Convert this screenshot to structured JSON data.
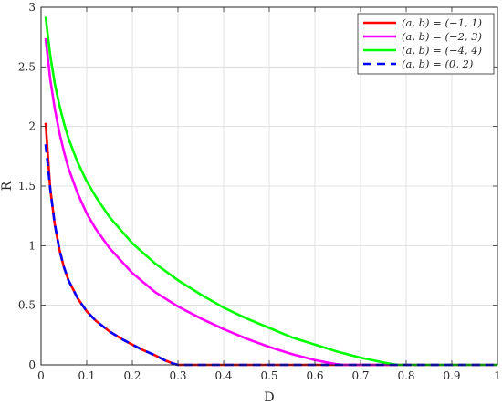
{
  "chart_data": {
    "type": "line",
    "xlabel": "D",
    "ylabel": "R",
    "xlim": [
      0,
      1
    ],
    "ylim": [
      0,
      3
    ],
    "grid": true,
    "legend_position": "top-right",
    "x_ticks": [
      "0",
      "0.1",
      "0.2",
      "0.3",
      "0.4",
      "0.5",
      "0.6",
      "0.7",
      "0.8",
      "0.9",
      "1"
    ],
    "y_ticks": [
      "0",
      "0.5",
      "1",
      "1.5",
      "2",
      "2.5",
      "3"
    ],
    "series": [
      {
        "name": "(a, b) = (−1, 1)",
        "color": "#ff0000",
        "style": "solid",
        "x": [
          0.01,
          0.02,
          0.03,
          0.04,
          0.05,
          0.06,
          0.08,
          0.1,
          0.12,
          0.15,
          0.18,
          0.2,
          0.22,
          0.25,
          0.27,
          0.29,
          0.3,
          0.4,
          0.5,
          0.6,
          0.7,
          0.8,
          0.9,
          1.0
        ],
        "y": [
          2.03,
          1.48,
          1.18,
          0.97,
          0.82,
          0.71,
          0.56,
          0.45,
          0.37,
          0.28,
          0.21,
          0.17,
          0.13,
          0.08,
          0.04,
          0.01,
          0,
          0,
          0,
          0,
          0,
          0,
          0,
          0
        ]
      },
      {
        "name": "(a, b) = (−2, 3)",
        "color": "#ff00ff",
        "style": "solid",
        "x": [
          0.01,
          0.02,
          0.03,
          0.04,
          0.05,
          0.06,
          0.08,
          0.1,
          0.12,
          0.15,
          0.2,
          0.25,
          0.3,
          0.35,
          0.4,
          0.45,
          0.5,
          0.55,
          0.6,
          0.64,
          0.66,
          0.7,
          0.8,
          0.9,
          1.0
        ],
        "y": [
          2.74,
          2.4,
          2.15,
          1.95,
          1.79,
          1.65,
          1.44,
          1.27,
          1.14,
          0.98,
          0.77,
          0.61,
          0.49,
          0.39,
          0.3,
          0.22,
          0.15,
          0.09,
          0.04,
          0.01,
          0,
          0,
          0,
          0,
          0
        ]
      },
      {
        "name": "(a, b) = (−4, 4)",
        "color": "#00ff00",
        "style": "solid",
        "x": [
          0.01,
          0.02,
          0.03,
          0.04,
          0.05,
          0.06,
          0.08,
          0.1,
          0.12,
          0.15,
          0.2,
          0.25,
          0.3,
          0.35,
          0.4,
          0.45,
          0.5,
          0.55,
          0.6,
          0.65,
          0.7,
          0.75,
          0.78,
          0.8,
          0.9,
          1.0
        ],
        "y": [
          2.92,
          2.6,
          2.36,
          2.18,
          2.03,
          1.9,
          1.7,
          1.54,
          1.41,
          1.24,
          1.02,
          0.85,
          0.71,
          0.59,
          0.48,
          0.39,
          0.31,
          0.23,
          0.17,
          0.11,
          0.06,
          0.02,
          0,
          0,
          0,
          0
        ]
      },
      {
        "name": "(a, b) = (0, 2)",
        "color": "#0000ff",
        "style": "dashed",
        "x": [
          0.01,
          0.02,
          0.03,
          0.04,
          0.05,
          0.06,
          0.08,
          0.1,
          0.12,
          0.15,
          0.18,
          0.2,
          0.22,
          0.25,
          0.27,
          0.29,
          0.3,
          0.4,
          0.5,
          0.6,
          0.7,
          0.8,
          0.9,
          1.0
        ],
        "y": [
          1.85,
          1.48,
          1.18,
          0.97,
          0.82,
          0.71,
          0.56,
          0.45,
          0.37,
          0.28,
          0.21,
          0.17,
          0.13,
          0.08,
          0.04,
          0.01,
          0,
          0,
          0,
          0,
          0,
          0,
          0,
          0
        ]
      }
    ]
  }
}
